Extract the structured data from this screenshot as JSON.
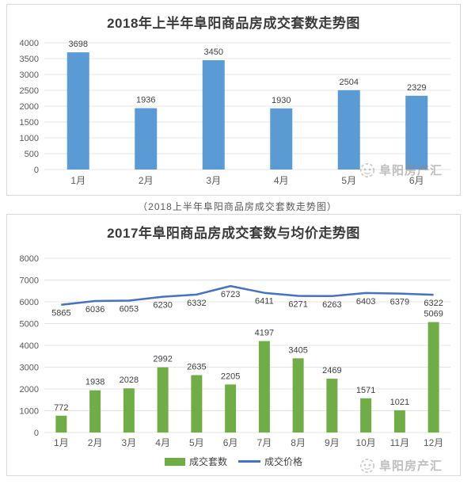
{
  "caption": "（2018上半年阜阳商品房成交套数走势图）",
  "watermark": {
    "text": "阜阳房产汇"
  },
  "colors": {
    "bar_blue": "#5B9BD5",
    "bar_green": "#70AD47",
    "line_blue": "#4472C4",
    "grid": "#e4e4e4",
    "axis_text": "#595959",
    "data_label_text": "#404040"
  },
  "chart_data": [
    {
      "type": "bar",
      "title": "2018年上半年阜阳商品房成交套数走势图",
      "categories": [
        "1月",
        "2月",
        "3月",
        "4月",
        "5月",
        "6月"
      ],
      "values": [
        3698,
        1936,
        3450,
        1930,
        2504,
        2329
      ],
      "bar_color": "#5B9BD5",
      "xlabel": "",
      "ylabel": "",
      "ylim": [
        0,
        4000
      ],
      "ytick_step": 500,
      "yticks": [
        0,
        500,
        1000,
        1500,
        2000,
        2500,
        3000,
        3500,
        4000
      ],
      "grid": true,
      "legend_position": "none"
    },
    {
      "type": "combo",
      "title": "2017年阜阳商品房成交套数与均价走势图",
      "categories": [
        "1月",
        "2月",
        "3月",
        "4月",
        "5月",
        "6月",
        "7月",
        "8月",
        "9月",
        "10月",
        "11月",
        "12月"
      ],
      "series": [
        {
          "name": "成交套数",
          "type": "bar",
          "color": "#70AD47",
          "values": [
            772,
            1938,
            2028,
            2992,
            2635,
            2205,
            4197,
            3405,
            2469,
            1571,
            1021,
            5069
          ]
        },
        {
          "name": "成交价格",
          "type": "line",
          "color": "#4472C4",
          "values": [
            5865,
            6036,
            6053,
            6230,
            6332,
            6723,
            6411,
            6271,
            6263,
            6403,
            6379,
            6322
          ]
        }
      ],
      "xlabel": "",
      "ylabel": "",
      "ylim": [
        0,
        8000
      ],
      "ytick_step": 1000,
      "yticks": [
        0,
        1000,
        2000,
        3000,
        4000,
        5000,
        6000,
        7000,
        8000
      ],
      "grid": true,
      "legend_position": "bottom"
    }
  ]
}
